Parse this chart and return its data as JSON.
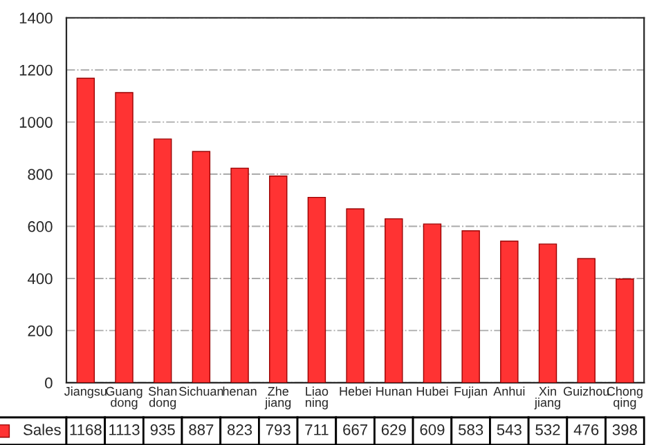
{
  "chart_data": {
    "type": "bar",
    "categories": [
      "Jiangsu",
      "Guang\ndong",
      "Shan\ndong",
      "Sichuan",
      "henan",
      "Zhe\njiang",
      "Liao\nning",
      "Hebei",
      "Hunan",
      "Hubei",
      "Fujian",
      "Anhui",
      "Xin\njiang",
      "Guizhou",
      "Chong\nqing"
    ],
    "series": [
      {
        "name": "Sales",
        "color": "#ff3333",
        "values": [
          1168,
          1113,
          935,
          887,
          823,
          793,
          711,
          667,
          629,
          609,
          583,
          543,
          532,
          476,
          398
        ]
      }
    ],
    "ylim": [
      0,
      1400
    ],
    "yticks": [
      0,
      200,
      400,
      600,
      800,
      1000,
      1200,
      1400
    ],
    "grid": "y",
    "data_labels": true,
    "legend": "bottom"
  }
}
